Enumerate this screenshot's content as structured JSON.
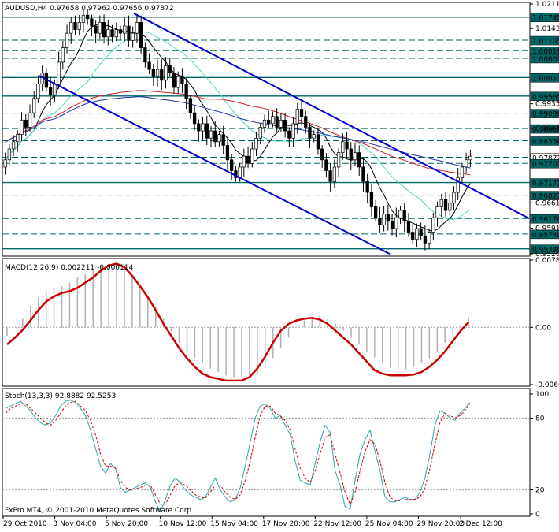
{
  "chart_data": [
    {
      "type": "candlestick",
      "symbol_header": "AUDUSD,H4  0.97658 0.97962 0.97656 0.97872",
      "price_scale": {
        "ylim": [
          0.9518,
          1.0211
        ],
        "tick_labels": [
          "1.02110",
          "1.01430",
          "0.99350",
          "0.98670",
          "0.96610",
          "0.95910",
          "0.95200"
        ]
      },
      "levels": [
        {
          "value": "1.01745",
          "y": 1.01745
        },
        {
          "value": "1.01107",
          "y": 1.01107
        },
        {
          "value": "1.00819",
          "y": 1.00819
        },
        {
          "value": "1.00607",
          "y": 1.00607
        },
        {
          "value": "1.00077",
          "y": 1.00077
        },
        {
          "value": "0.99565",
          "y": 0.99565
        },
        {
          "value": "0.99089",
          "y": 0.99089
        },
        {
          "value": "0.98665",
          "y": 0.98665
        },
        {
          "value": "0.98330",
          "y": 0.9833
        },
        {
          "value": "0.97872",
          "y": 0.97872
        },
        {
          "value": "0.97703",
          "y": 0.97703
        },
        {
          "value": "0.97173",
          "y": 0.97173
        },
        {
          "value": "0.96823",
          "y": 0.96823
        },
        {
          "value": "0.96178",
          "y": 0.96178
        },
        {
          "value": "0.95749",
          "y": 0.95749
        },
        {
          "value": "0.95340",
          "y": 0.9534
        }
      ],
      "closes": [
        0.978,
        0.981,
        0.983,
        0.985,
        0.989,
        0.987,
        0.991,
        0.995,
        0.999,
        1.002,
        0.998,
        0.996,
        0.999,
        1.005,
        1.009,
        1.013,
        1.016,
        1.014,
        1.016,
        1.018,
        1.017,
        1.015,
        1.013,
        1.016,
        1.012,
        1.014,
        1.012,
        1.014,
        1.013,
        1.015,
        1.011,
        1.013,
        1.016,
        1.009,
        1.005,
        1.003,
        1.001,
        1.003,
        1.0,
        1.004,
        1.002,
        0.998,
        1.001,
        0.999,
        0.995,
        0.991,
        0.988,
        0.986,
        0.988,
        0.984,
        0.986,
        0.983,
        0.985,
        0.982,
        0.978,
        0.975,
        0.973,
        0.976,
        0.979,
        0.977,
        0.981,
        0.984,
        0.987,
        0.989,
        0.988,
        0.99,
        0.987,
        0.989,
        0.986,
        0.984,
        0.988,
        0.992,
        0.99,
        0.987,
        0.984,
        0.985,
        0.981,
        0.978,
        0.975,
        0.972,
        0.976,
        0.98,
        0.983,
        0.981,
        0.978,
        0.98,
        0.976,
        0.972,
        0.969,
        0.965,
        0.962,
        0.96,
        0.963,
        0.961,
        0.959,
        0.962,
        0.964,
        0.961,
        0.958,
        0.956,
        0.959,
        0.957,
        0.955,
        0.958,
        0.962,
        0.965,
        0.967,
        0.964,
        0.966,
        0.969,
        0.973,
        0.976,
        0.978,
        0.979
      ],
      "candle_colors": {
        "bar": "#000000",
        "bull_fill": "#ffffff",
        "bear_fill": "#000000"
      },
      "channel_color": "#0000cc",
      "ma_colors": [
        "#000000",
        "#55d6c0",
        "#cc2222",
        "#2233aa"
      ],
      "level_line_color": "#006666"
    },
    {
      "type": "bar",
      "header": "MACD(12,26,9) 0.002211 -0.000114",
      "tick_labels": [
        "0.007826",
        "0.00",
        "-0.006671"
      ],
      "ylim": [
        -0.006671,
        0.007826
      ],
      "histogram": [
        -0.001,
        0.0,
        0.001,
        0.0025,
        0.0035,
        0.0042,
        0.0046,
        0.0048,
        0.0052,
        0.0058,
        0.0062,
        0.0068,
        0.0072,
        0.0074,
        0.0071,
        0.0066,
        0.0058,
        0.0048,
        0.0037,
        0.0024,
        0.001,
        -0.0005,
        -0.0018,
        -0.0028,
        -0.0036,
        -0.0042,
        -0.0048,
        -0.0052,
        -0.0056,
        -0.0058,
        -0.0059,
        -0.0058,
        -0.0054,
        -0.0046,
        -0.0036,
        -0.0024,
        -0.0012,
        0.0,
        0.0008,
        0.0012,
        0.0014,
        0.001,
        0.0004,
        -0.0004,
        -0.0012,
        -0.002,
        -0.0028,
        -0.0035,
        -0.0042,
        -0.0047,
        -0.005,
        -0.0049,
        -0.0046,
        -0.0042,
        -0.0036,
        -0.0028,
        -0.0018,
        -0.0008,
        0.0003,
        0.0012
      ],
      "signal": [
        -0.002,
        -0.0012,
        -0.0003,
        0.0008,
        0.002,
        0.003,
        0.0036,
        0.004,
        0.0042,
        0.0046,
        0.0052,
        0.0058,
        0.0066,
        0.0072,
        0.0074,
        0.007,
        0.006,
        0.0048,
        0.0035,
        0.002,
        0.0004,
        -0.001,
        -0.0024,
        -0.0036,
        -0.0046,
        -0.0054,
        -0.0058,
        -0.006,
        -0.0062,
        -0.0062,
        -0.0062,
        -0.0058,
        -0.0048,
        -0.0034,
        -0.0018,
        -0.0004,
        0.0004,
        0.0008,
        0.001,
        0.0011,
        0.0009,
        0.0004,
        -0.0004,
        -0.0012,
        -0.002,
        -0.003,
        -0.004,
        -0.005,
        -0.0054,
        -0.0056,
        -0.0056,
        -0.0056,
        -0.0055,
        -0.0052,
        -0.0046,
        -0.0038,
        -0.0028,
        -0.0016,
        -0.0004,
        0.0006
      ],
      "signal_color": "#cc0000",
      "hist_color": "#b0b0b0"
    },
    {
      "type": "line",
      "header": "Stoch(13,3,3) 92.8882 92.5253",
      "tick_labels": [
        "100",
        "80",
        "20",
        "0"
      ],
      "ylim": [
        0,
        100
      ],
      "k": [
        88,
        90,
        92,
        94,
        90,
        86,
        80,
        76,
        74,
        76,
        82,
        90,
        94,
        95,
        93,
        88,
        82,
        70,
        55,
        40,
        34,
        42,
        38,
        22,
        18,
        20,
        22,
        24,
        26,
        22,
        10,
        2,
        12,
        24,
        30,
        26,
        20,
        16,
        14,
        12,
        14,
        22,
        30,
        20,
        14,
        10,
        12,
        22,
        40,
        60,
        80,
        90,
        92,
        88,
        80,
        82,
        74,
        66,
        44,
        28,
        26,
        24,
        42,
        60,
        74,
        68,
        36,
        24,
        6,
        4,
        28,
        50,
        62,
        70,
        52,
        36,
        14,
        10,
        10,
        12,
        14,
        12,
        12,
        18,
        30,
        50,
        74,
        86,
        84,
        80,
        78,
        84,
        88,
        93
      ],
      "d": [
        84,
        88,
        90,
        92,
        92,
        88,
        84,
        80,
        76,
        74,
        78,
        84,
        90,
        93,
        94,
        90,
        86,
        78,
        66,
        50,
        40,
        40,
        38,
        28,
        22,
        20,
        21,
        22,
        24,
        24,
        16,
        8,
        8,
        16,
        24,
        26,
        24,
        20,
        16,
        14,
        13,
        18,
        24,
        24,
        18,
        14,
        12,
        16,
        28,
        44,
        64,
        82,
        90,
        90,
        84,
        82,
        78,
        70,
        54,
        38,
        30,
        26,
        36,
        50,
        64,
        66,
        50,
        34,
        18,
        8,
        18,
        36,
        52,
        62,
        58,
        44,
        26,
        14,
        11,
        11,
        12,
        12,
        12,
        14,
        22,
        38,
        58,
        76,
        84,
        82,
        80,
        82,
        86,
        92
      ],
      "k_color": "#2aa6b0",
      "d_color": "#cc0000"
    }
  ],
  "x_axis": {
    "tick_labels": [
      "29 Oct 2010",
      "3 Nov 04:00",
      "5 Nov 20:00",
      "10 Nov 12:00",
      "15 Nov 04:00",
      "17 Nov 20:00",
      "22 Nov 12:00",
      "25 Nov 04:00",
      "29 Nov 20:00",
      "2 Dec 12:00"
    ],
    "tick_positions_fraction": [
      0.0,
      0.11,
      0.22,
      0.335,
      0.445,
      0.555,
      0.665,
      0.775,
      0.885,
      0.975
    ]
  },
  "copyright": "FxPro MT4, © 2001-2010 MetaQuotes Software Corp."
}
